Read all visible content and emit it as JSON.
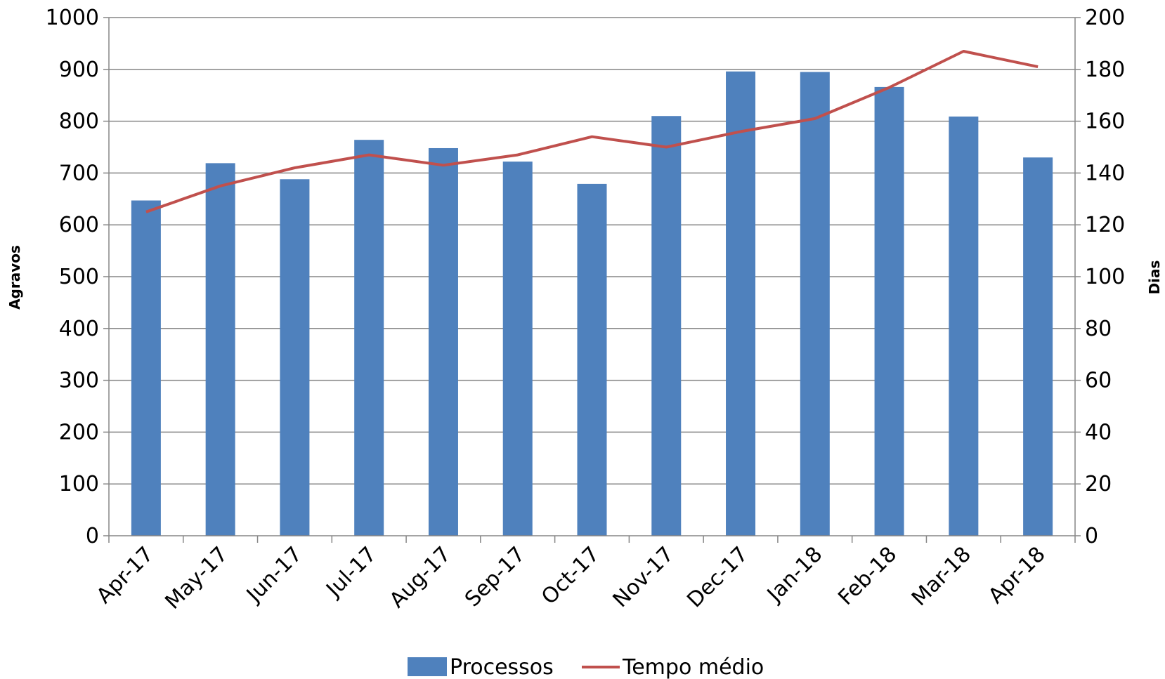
{
  "chart_data": {
    "type": "bar",
    "title": "",
    "categories": [
      "Apr-17",
      "May-17",
      "Jun-17",
      "Jul-17",
      "Aug-17",
      "Sep-17",
      "Oct-17",
      "Nov-17",
      "Dec-17",
      "Jan-18",
      "Feb-18",
      "Mar-18",
      "Apr-18"
    ],
    "series": [
      {
        "name": "Processos",
        "type": "bar",
        "axis": "left",
        "color": "#4F81BD",
        "values": [
          647,
          719,
          688,
          764,
          748,
          722,
          679,
          810,
          896,
          895,
          866,
          809,
          730
        ]
      },
      {
        "name": "Tempo médio",
        "type": "line",
        "axis": "right",
        "color": "#C0504D",
        "values": [
          125,
          135,
          142,
          147,
          143,
          147,
          154,
          150,
          156,
          161,
          173,
          187,
          181
        ]
      }
    ],
    "y_left": {
      "label": "Agravos",
      "ylim": [
        0,
        1000
      ],
      "ticks": [
        "0",
        "100",
        "200",
        "300",
        "400",
        "500",
        "600",
        "700",
        "800",
        "900",
        "1000"
      ]
    },
    "y_right": {
      "label": "Dias",
      "ylim": [
        0,
        200
      ],
      "ticks": [
        "0",
        "20",
        "40",
        "60",
        "80",
        "100",
        "120",
        "140",
        "160",
        "180",
        "200"
      ]
    },
    "grid": true,
    "legend": "bottom"
  }
}
